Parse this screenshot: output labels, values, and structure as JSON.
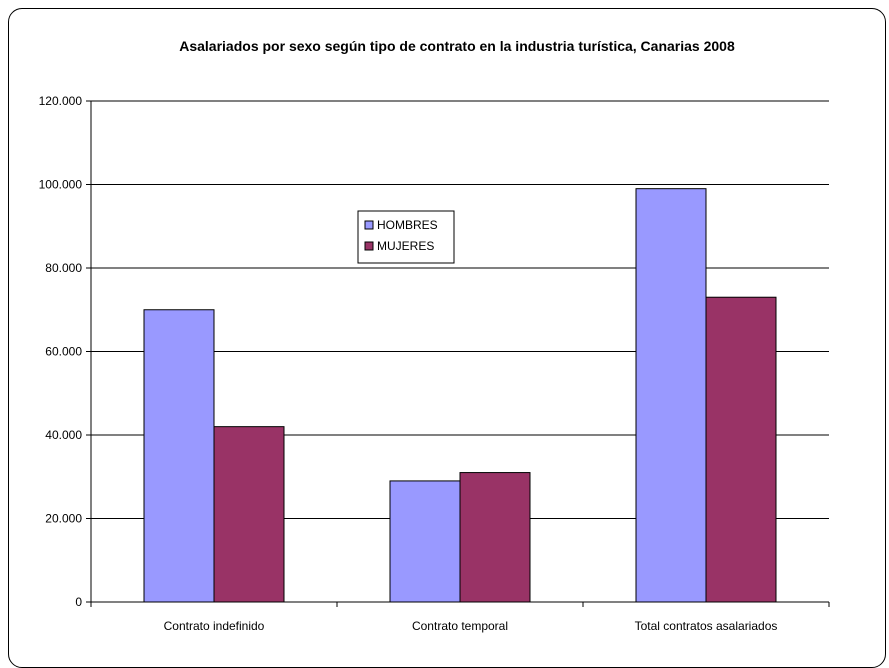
{
  "chart_data": {
    "type": "bar",
    "title": "Asalariados por sexo según tipo de contrato en la industria turística, Canarias 2008",
    "categories": [
      "Contrato indefinido",
      "Contrato temporal",
      "Total contratos asalariados"
    ],
    "series": [
      {
        "name": "HOMBRES",
        "values": [
          70000,
          29000,
          99000
        ],
        "color": "#9999ff"
      },
      {
        "name": "MUJERES",
        "values": [
          42000,
          31000,
          73000
        ],
        "color": "#993366"
      }
    ],
    "ylim": [
      0,
      120000
    ],
    "yticks": [
      0,
      20000,
      40000,
      60000,
      80000,
      100000,
      120000
    ],
    "ytick_labels": [
      "0",
      "20.000",
      "40.000",
      "60.000",
      "80.000",
      "100.000",
      "120.000"
    ],
    "grid": true,
    "legend_position": "inside-center"
  }
}
